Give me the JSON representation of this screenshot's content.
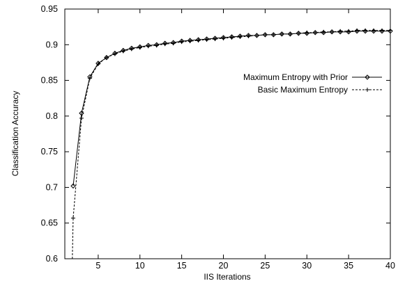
{
  "chart_data": {
    "type": "line",
    "title": "",
    "xlabel": "IIS Iterations",
    "ylabel": "Classification Accuracy",
    "xlim": [
      1,
      40
    ],
    "ylim": [
      0.6,
      0.95
    ],
    "x_ticks": [
      "5",
      "10",
      "15",
      "20",
      "25",
      "30",
      "35",
      "40"
    ],
    "y_ticks": [
      "0.6",
      "0.65",
      "0.7",
      "0.75",
      "0.8",
      "0.85",
      "0.9",
      "0.95"
    ],
    "grid": false,
    "legend_position": "right",
    "x": [
      2,
      3,
      4,
      5,
      6,
      7,
      8,
      9,
      10,
      11,
      12,
      13,
      14,
      15,
      16,
      17,
      18,
      19,
      20,
      21,
      22,
      23,
      24,
      25,
      26,
      27,
      28,
      29,
      30,
      31,
      32,
      33,
      34,
      35,
      36,
      37,
      38,
      39,
      40
    ],
    "series": [
      {
        "name": "Maximum Entropy with Prior",
        "marker": "diamond",
        "line": "solid",
        "color": "#000000",
        "values": [
          0.702,
          0.804,
          0.855,
          0.874,
          0.882,
          0.888,
          0.892,
          0.895,
          0.897,
          0.899,
          0.9,
          0.902,
          0.903,
          0.905,
          0.906,
          0.907,
          0.908,
          0.909,
          0.91,
          0.911,
          0.912,
          0.913,
          0.913,
          0.914,
          0.914,
          0.915,
          0.915,
          0.916,
          0.916,
          0.917,
          0.917,
          0.918,
          0.918,
          0.918,
          0.919,
          0.919,
          0.919,
          0.919,
          0.919
        ]
      },
      {
        "name": "Basic Maximum Entropy",
        "marker": "plus",
        "line": "dashed",
        "color": "#000000",
        "start": {
          "x": 1.9,
          "y": 0.6
        },
        "values": [
          0.657,
          0.797,
          0.853,
          0.873,
          0.882,
          0.887,
          0.891,
          0.894,
          0.896,
          0.898,
          0.899,
          0.901,
          0.902,
          0.904,
          0.905,
          0.906,
          0.907,
          0.908,
          0.909,
          0.91,
          0.911,
          0.912,
          0.913,
          0.914,
          0.914,
          0.915,
          0.915,
          0.916,
          0.917,
          0.917,
          0.918,
          0.918,
          0.919,
          0.919,
          0.92,
          0.92,
          0.92,
          0.92,
          0.92
        ]
      }
    ]
  }
}
